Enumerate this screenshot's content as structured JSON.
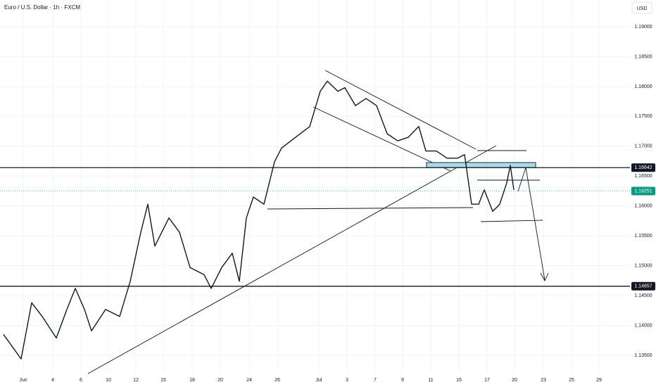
{
  "chart_data": {
    "type": "line",
    "title": "Euro / U.S. Dollar · 1h · FXCM",
    "currency": "USD",
    "color": "#131722",
    "x": [
      -1.4,
      -0.15,
      0.6,
      1.35,
      2.35,
      3.1,
      3.7,
      4.35,
      4.85,
      5.85,
      6.85,
      7.6,
      8.35,
      8.85,
      9.35,
      10.35,
      11.1,
      11.85,
      12.85,
      13.35,
      14.1,
      14.85,
      15.35,
      15.85,
      16.35,
      17.1,
      17.85,
      18.35,
      19.35,
      20.35,
      21.1,
      21.6,
      22.35,
      22.85,
      23.6,
      24.35,
      25.1,
      25.85,
      26.6,
      27.35,
      28.1,
      28.6,
      29.35,
      30.1,
      30.85,
      31.35,
      31.85,
      32.35,
      32.75,
      33.35,
      33.85,
      34.35,
      34.6,
      34.85
    ],
    "values": [
      1.1385,
      1.1344,
      1.1438,
      1.1415,
      1.1379,
      1.1427,
      1.1462,
      1.1427,
      1.1391,
      1.1427,
      1.1415,
      1.1474,
      1.1556,
      1.1603,
      1.1533,
      1.158,
      1.1556,
      1.1497,
      1.1485,
      1.1462,
      1.1497,
      1.1521,
      1.1474,
      1.158,
      1.1615,
      1.1603,
      1.1674,
      1.1697,
      1.1715,
      1.1733,
      1.1792,
      1.1809,
      1.1792,
      1.1798,
      1.1768,
      1.178,
      1.1768,
      1.1721,
      1.1709,
      1.1715,
      1.1733,
      1.1692,
      1.1692,
      1.168,
      1.168,
      1.1686,
      1.1603,
      1.1603,
      1.1627,
      1.1591,
      1.1603,
      1.1639,
      1.1668,
      1.1627
    ],
    "xlim": [
      -1.65,
      43.1
    ],
    "ylim": [
      1.13206,
      1.19448
    ],
    "xticks": [
      {
        "value": 0,
        "label": "Jun"
      },
      {
        "value": 2.1,
        "label": "4"
      },
      {
        "value": 4.1,
        "label": "6"
      },
      {
        "value": 6.05,
        "label": "10"
      },
      {
        "value": 8,
        "label": "12"
      },
      {
        "value": 9.95,
        "label": "15"
      },
      {
        "value": 12,
        "label": "18"
      },
      {
        "value": 14,
        "label": "20"
      },
      {
        "value": 16.05,
        "label": "24"
      },
      {
        "value": 18.05,
        "label": "26"
      },
      {
        "value": 21,
        "label": "Jul"
      },
      {
        "value": 23,
        "label": "3"
      },
      {
        "value": 25,
        "label": "7"
      },
      {
        "value": 26.95,
        "label": "9"
      },
      {
        "value": 28.95,
        "label": "11"
      },
      {
        "value": 30.95,
        "label": "15"
      },
      {
        "value": 32.95,
        "label": "17"
      },
      {
        "value": 34.9,
        "label": "20"
      },
      {
        "value": 36.95,
        "label": "23"
      },
      {
        "value": 38.95,
        "label": "25"
      },
      {
        "value": 40.9,
        "label": "29"
      }
    ],
    "yticks": [
      {
        "value": 1.135,
        "label": "1.13500"
      },
      {
        "value": 1.14,
        "label": "1.14000"
      },
      {
        "value": 1.145,
        "label": "1.14500"
      },
      {
        "value": 1.15,
        "label": "1.15000"
      },
      {
        "value": 1.155,
        "label": "1.15500"
      },
      {
        "value": 1.16,
        "label": "1.16000"
      },
      {
        "value": 1.165,
        "label": "1.16500"
      },
      {
        "value": 1.17,
        "label": "1.17000"
      },
      {
        "value": 1.175,
        "label": "1.17500"
      },
      {
        "value": 1.18,
        "label": "1.18000"
      },
      {
        "value": 1.185,
        "label": "1.18500"
      },
      {
        "value": 1.19,
        "label": "1.19000"
      }
    ],
    "grid": true,
    "levels": [
      1.16642,
      1.14657
    ],
    "level_color": "#131722",
    "last_price": 1.16251,
    "last_price_color": "#089981"
  }
}
